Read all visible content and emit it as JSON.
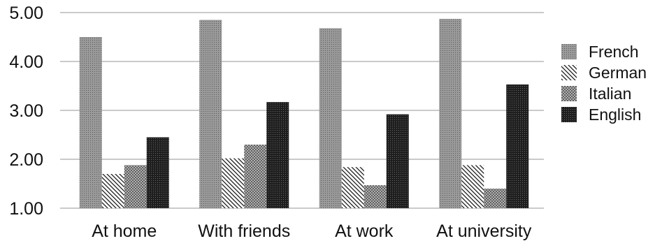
{
  "chart_data": {
    "type": "bar",
    "categories": [
      "At home",
      "With friends",
      "At work",
      "At university"
    ],
    "series": [
      {
        "name": "French",
        "values": [
          4.5,
          4.85,
          4.68,
          4.87
        ],
        "pattern": "french-pattern"
      },
      {
        "name": "German",
        "values": [
          1.7,
          2.02,
          1.84,
          1.88
        ],
        "pattern": "german-pattern"
      },
      {
        "name": "Italian",
        "values": [
          1.88,
          2.3,
          1.47,
          1.4
        ],
        "pattern": "italian-pattern"
      },
      {
        "name": "English",
        "values": [
          2.45,
          3.17,
          2.92,
          3.53
        ],
        "pattern": "english-pattern"
      }
    ],
    "yticks": [
      "1.00",
      "2.00",
      "3.00",
      "4.00",
      "5.00"
    ],
    "ylim": [
      1,
      5
    ],
    "title": "",
    "xlabel": "",
    "ylabel": "",
    "grid": true,
    "legend_position": "right",
    "colors": {
      "grid": "#b8b8b8",
      "french": "#8c8c8c",
      "german": "#4a4a4a",
      "italian": "#6e6e6e",
      "english": "#262626"
    }
  }
}
